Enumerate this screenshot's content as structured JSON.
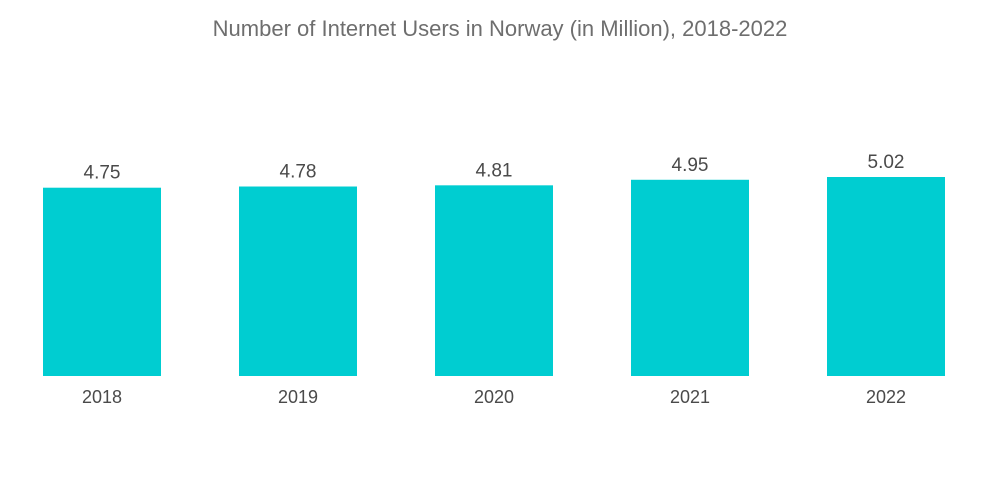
{
  "chart_data": {
    "type": "bar",
    "title": "Number of Internet Users in Norway (in Million), 2018-2022",
    "categories": [
      "2018",
      "2019",
      "2020",
      "2021",
      "2022"
    ],
    "values": [
      4.75,
      4.78,
      4.81,
      4.95,
      5.02
    ],
    "value_labels": [
      "4.75",
      "4.78",
      "4.81",
      "4.95",
      "5.02"
    ],
    "xlabel": "",
    "ylabel": "",
    "ylim": [
      0,
      5.02
    ],
    "grid": false,
    "legend": "none",
    "bar_color": "#00cdd1"
  }
}
